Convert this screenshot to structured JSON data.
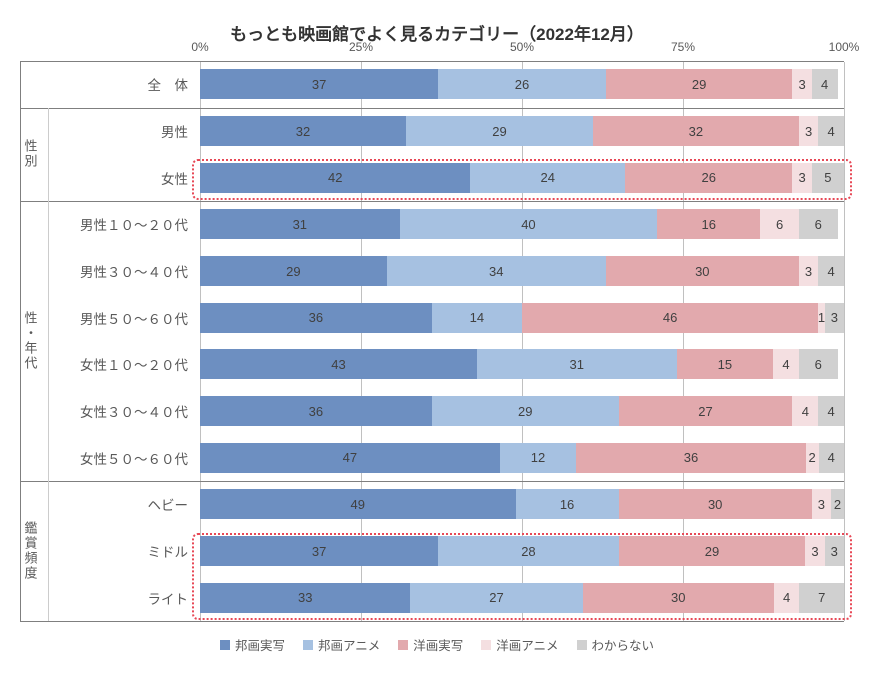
{
  "chart": {
    "title": "もっとも映画館でよく見るカテゴリー（2022年12月）",
    "type": "stacked-bar-horizontal",
    "xlim": [
      0,
      100
    ],
    "xticks": [
      0,
      25,
      50,
      75,
      100
    ],
    "xtick_labels": [
      "0%",
      "25%",
      "50%",
      "75%",
      "100%"
    ],
    "grid_color": "#c0c0c0",
    "axis_color": "#7f7f7f",
    "background_color": "#ffffff",
    "title_fontsize": 17,
    "label_fontsize": 13.5,
    "value_fontsize": 13,
    "series": [
      {
        "key": "s1",
        "label": "邦画実写",
        "color": "#6d8fc1"
      },
      {
        "key": "s2",
        "label": "邦画アニメ",
        "color": "#a6c1e1"
      },
      {
        "key": "s3",
        "label": "洋画実写",
        "color": "#e2a9ad"
      },
      {
        "key": "s4",
        "label": "洋画アニメ",
        "color": "#f4dfe1"
      },
      {
        "key": "s5",
        "label": "わからない",
        "color": "#d0d0d0"
      }
    ],
    "groups": [
      {
        "label": "",
        "rows": [
          "全　体"
        ]
      },
      {
        "label": "性別",
        "rows": [
          "男性",
          "女性"
        ]
      },
      {
        "label": "性・年代",
        "rows": [
          "男性１０〜２０代",
          "男性３０〜４０代",
          "男性５０〜６０代",
          "女性１０〜２０代",
          "女性３０〜４０代",
          "女性５０〜６０代"
        ]
      },
      {
        "label": "鑑賞頻度",
        "rows": [
          "ヘビー",
          "ミドル",
          "ライト"
        ]
      }
    ],
    "rows": [
      {
        "label": "全　体",
        "values": [
          37,
          26,
          29,
          3,
          4
        ]
      },
      {
        "label": "男性",
        "values": [
          32,
          29,
          32,
          3,
          4
        ]
      },
      {
        "label": "女性",
        "values": [
          42,
          24,
          26,
          3,
          5
        ]
      },
      {
        "label": "男性１０〜２０代",
        "values": [
          31,
          40,
          16,
          6,
          6
        ]
      },
      {
        "label": "男性３０〜４０代",
        "values": [
          29,
          34,
          30,
          3,
          4
        ]
      },
      {
        "label": "男性５０〜６０代",
        "values": [
          36,
          14,
          46,
          1,
          3
        ]
      },
      {
        "label": "女性１０〜２０代",
        "values": [
          43,
          31,
          15,
          4,
          6
        ]
      },
      {
        "label": "女性３０〜４０代",
        "values": [
          36,
          29,
          27,
          4,
          4
        ]
      },
      {
        "label": "女性５０〜６０代",
        "values": [
          47,
          12,
          36,
          2,
          4
        ]
      },
      {
        "label": "ヘビー",
        "values": [
          49,
          16,
          30,
          3,
          2
        ]
      },
      {
        "label": "ミドル",
        "values": [
          37,
          28,
          29,
          3,
          3
        ]
      },
      {
        "label": "ライト",
        "values": [
          33,
          27,
          30,
          4,
          7
        ]
      }
    ],
    "highlights": [
      {
        "start_row": 2,
        "end_row": 2
      },
      {
        "start_row": 10,
        "end_row": 11
      }
    ],
    "highlight_color": "#e74856"
  }
}
